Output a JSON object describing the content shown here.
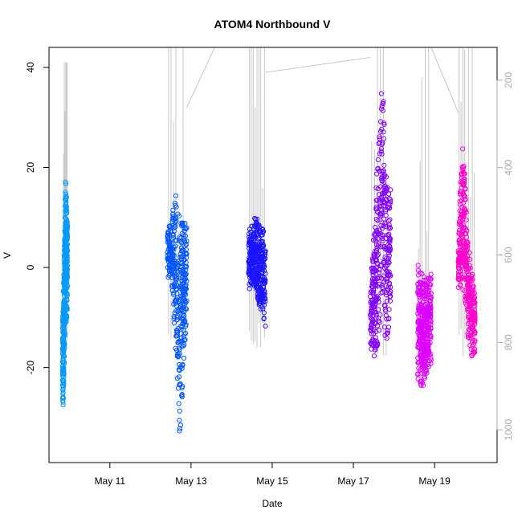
{
  "chart_data": {
    "type": "scatter",
    "title": "ATOM4 Northbound V",
    "xlabel": "Date",
    "ylabel": "V",
    "x_tick_labels": [
      "May 11",
      "May 13",
      "May 15",
      "May 17",
      "May 19"
    ],
    "x_tick_dates": [
      "2021-05-11",
      "2021-05-13",
      "2021-05-15",
      "2021-05-17",
      "2021-05-19"
    ],
    "xlim": [
      "2021-05-09T12:00",
      "2021-05-20T13:00"
    ],
    "ylim": [
      -39,
      44
    ],
    "y_ticks": [
      -20,
      0,
      20,
      40
    ],
    "y2_ticks": [
      200,
      400,
      600,
      800,
      1000
    ],
    "y2_range_top_to_bottom": [
      125,
      1075
    ],
    "y2_color": "#aaaaaa",
    "point_marker": "open-circle",
    "grid": false,
    "legend": "none",
    "series": [
      {
        "color": "#0099ff",
        "time_range": [
          "2021-05-09T20:00",
          "2021-05-09T23:00"
        ],
        "v_envelope": [
          [
            -29,
            -10
          ],
          [
            -27,
            -3
          ],
          [
            -16,
            8
          ],
          [
            -10,
            19
          ],
          [
            -12,
            14
          ],
          [
            -8,
            10
          ]
        ],
        "line_range": [
          -16,
          41
        ]
      },
      {
        "color": "#0055ff",
        "time_range": [
          "2021-05-12T10:00",
          "2021-05-12T21:30"
        ],
        "v_envelope": [
          [
            -2,
            8
          ],
          [
            -3,
            9
          ],
          [
            -15,
            16
          ],
          [
            -36,
            12
          ],
          [
            -25,
            9
          ],
          [
            -8,
            10
          ]
        ],
        "line_range": [
          -15,
          44
        ]
      },
      {
        "color": "#1a14ff",
        "time_range": [
          "2021-05-14T10:00",
          "2021-05-14T20:00"
        ],
        "v_envelope": [
          [
            -4,
            7
          ],
          [
            -5,
            9
          ],
          [
            -3,
            10
          ],
          [
            -9,
            10
          ],
          [
            -8,
            9
          ],
          [
            -13,
            5
          ]
        ],
        "line_range": [
          -17,
          44
        ]
      },
      {
        "color": "#8000ff",
        "time_range": [
          "2021-05-17T10:00",
          "2021-05-17T22:00"
        ],
        "v_envelope": [
          [
            -19,
            -4
          ],
          [
            -18,
            10
          ],
          [
            -15,
            25
          ],
          [
            -5,
            41
          ],
          [
            -19,
            17
          ],
          [
            -8,
            16
          ]
        ],
        "line_range": [
          -18,
          44
        ]
      },
      {
        "color": "#dd00ff",
        "time_range": [
          "2021-05-18T14:00",
          "2021-05-18T22:00"
        ],
        "v_envelope": [
          [
            -23,
            2
          ],
          [
            -24,
            -1
          ],
          [
            -24,
            -1
          ],
          [
            -22,
            -2
          ],
          [
            -21,
            -2
          ],
          [
            -20,
            -1
          ]
        ],
        "line_range": [
          -23,
          44
        ]
      },
      {
        "color": "#ff00cc",
        "time_range": [
          "2021-05-19T14:00",
          "2021-05-20T00:00"
        ],
        "v_envelope": [
          [
            -5,
            3
          ],
          [
            -3,
            26
          ],
          [
            -7,
            20
          ],
          [
            -15,
            5
          ],
          [
            -18,
            0
          ],
          [
            -17,
            -5
          ]
        ],
        "line_range": [
          -18,
          44
        ]
      }
    ]
  }
}
